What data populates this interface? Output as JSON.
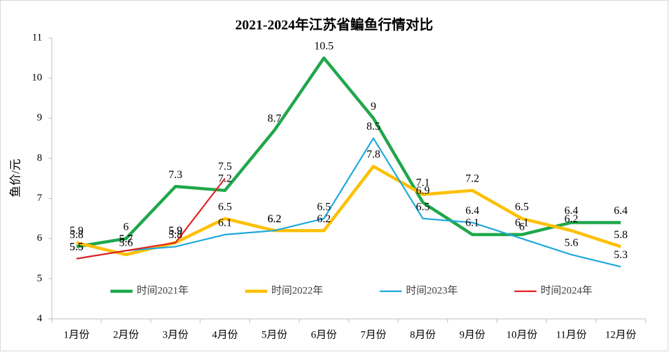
{
  "chart_data": {
    "type": "line",
    "title": "2021-2024年江苏省鳊鱼行情对比",
    "y_label": "鱼价/元",
    "categories": [
      "1月份",
      "2月份",
      "3月份",
      "4月份",
      "5月份",
      "6月份",
      "7月份",
      "8月份",
      "9月份",
      "10月份",
      "11月份",
      "12月份"
    ],
    "series": [
      {
        "name": "时间2021年",
        "color": "#20a74b",
        "width": 4.5,
        "values": [
          5.8,
          6,
          7.3,
          7.2,
          8.7,
          10.5,
          9,
          6.9,
          6.1,
          6.1,
          6.4,
          6.4
        ]
      },
      {
        "name": "时间2022年",
        "color": "#ffbf00",
        "width": 4.5,
        "values": [
          5.9,
          5.6,
          5.9,
          6.5,
          6.2,
          6.2,
          7.8,
          7.1,
          7.2,
          6.5,
          6.2,
          5.8
        ]
      },
      {
        "name": "时间2023年",
        "color": "#1ea8dc",
        "width": 2.2,
        "values": [
          5.5,
          5.7,
          5.8,
          6.1,
          6.2,
          6.5,
          8.5,
          6.5,
          6.4,
          6,
          5.6,
          5.3
        ]
      },
      {
        "name": "时间2024年",
        "color": "#e41f1f",
        "width": 2.2,
        "values": [
          5.5,
          5.7,
          5.9,
          7.5,
          null,
          null,
          null,
          null,
          null,
          null,
          null,
          null
        ]
      }
    ],
    "ylim": [
      4,
      11
    ],
    "yticks": [
      4,
      5,
      6,
      7,
      8,
      9,
      10,
      11
    ],
    "legend": "bottom-inside"
  }
}
